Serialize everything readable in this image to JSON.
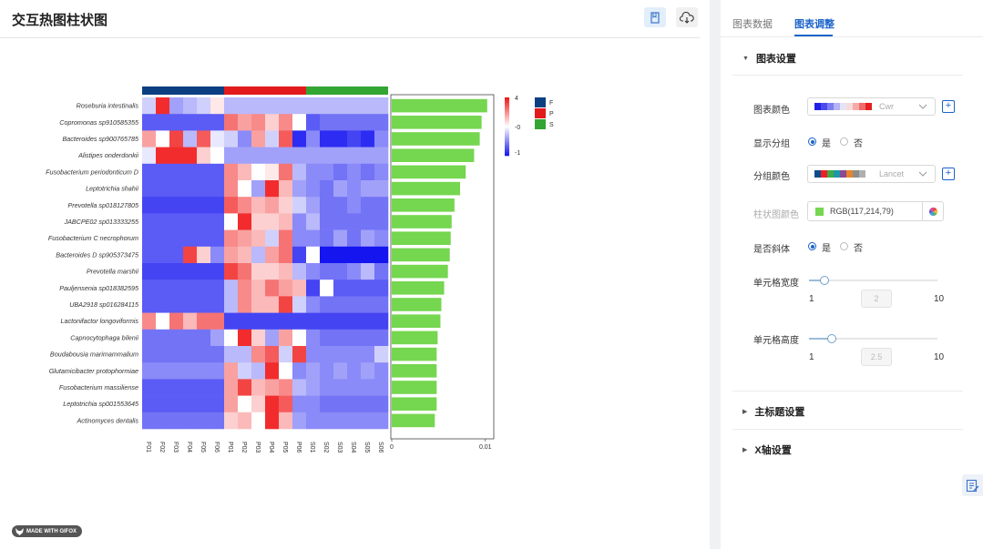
{
  "page": {
    "title": "交互热图柱状图"
  },
  "watermark": "MADE WITH GIFOX",
  "tabs": [
    {
      "label": "图表数据"
    },
    {
      "label": "图表调整"
    }
  ],
  "panel": {
    "chart_settings": {
      "title": "图表设置",
      "chart_color": {
        "label": "图表颜色",
        "value": "Cwr",
        "swatches": [
          "#2121e6",
          "#4a4af0",
          "#7e7ef2",
          "#b3b3f5",
          "#e4e4f6",
          "#f7dada",
          "#f5aaaa",
          "#f06a6a",
          "#e61f1f"
        ]
      },
      "show_group": {
        "label": "显示分组",
        "options": [
          "是",
          "否"
        ],
        "selected": "是"
      },
      "group_color": {
        "label": "分组颜色",
        "value": "Lancet",
        "swatches": [
          "#0b4d8c",
          "#ed1f24",
          "#3cab48",
          "#1d98a4",
          "#8a4a96",
          "#e8842a",
          "#8c8c8c",
          "#b0b0b0"
        ]
      },
      "bar_color": {
        "label": "柱状图颜色",
        "value": "RGB(117,214,79)",
        "color": "#75d64f"
      },
      "italic": {
        "label": "是否斜体",
        "options": [
          "是",
          "否"
        ],
        "selected": "是"
      },
      "cell_width": {
        "label": "单元格宽度",
        "min": "1",
        "max": "10",
        "value": "2"
      },
      "cell_height": {
        "label": "单元格高度",
        "min": "1",
        "max": "10",
        "value": "2.5"
      }
    },
    "main_title_settings": {
      "title": "主标题设置"
    },
    "x_axis_settings": {
      "title": "X轴设置"
    }
  },
  "chart_data": {
    "type": "heatmap",
    "rows": [
      "Roseburia intestinalis",
      "Copromonas sp910585355",
      "Bacteroides sp900765785",
      "Alistipes onderdonkii",
      "Fusobacterium periodonticum D",
      "Leptotrichia shahii",
      "Prevotella sp018127805",
      "JABCPE02 sp013333255",
      "Fusobacterium C necrophorum",
      "Bacteroides D sp905373475",
      "Prevotella marshii",
      "Pauljensenia sp018382595",
      "UBA2918 sp016284115",
      "Lactonifactor longoviformis",
      "Capnocytophaga bilenii",
      "Boudabousia marimammalium",
      "Glutamicibacter protophormiae",
      "Fusobacterium massiliense",
      "Leptotrichia sp001553645",
      "Actinomyces dentalis"
    ],
    "columns": [
      "F01",
      "F02",
      "F03",
      "F04",
      "F05",
      "F06",
      "P01",
      "P02",
      "P03",
      "P04",
      "P05",
      "P06",
      "S01",
      "S02",
      "S03",
      "S04",
      "S05",
      "S06"
    ],
    "groups": [
      {
        "name": "F",
        "color": "#0b3f82"
      },
      {
        "name": "P",
        "color": "#e31a1c"
      },
      {
        "name": "S",
        "color": "#33a532"
      }
    ],
    "values": [
      [
        -0.2,
        0.9,
        -0.4,
        -0.3,
        -0.2,
        0.1,
        -0.3,
        -0.3,
        -0.3,
        -0.3,
        -0.3,
        -0.3,
        -0.3,
        -0.3,
        -0.3,
        -0.3,
        -0.3,
        -0.3
      ],
      [
        -0.7,
        -0.7,
        -0.7,
        -0.7,
        -0.7,
        -0.7,
        0.6,
        0.4,
        0.5,
        0.2,
        0.5,
        0.0,
        -0.7,
        -0.6,
        -0.6,
        -0.6,
        -0.6,
        -0.6
      ],
      [
        0.4,
        0.0,
        0.8,
        -0.3,
        0.7,
        -0.1,
        -0.2,
        -0.5,
        0.4,
        -0.2,
        0.7,
        -0.9,
        -0.5,
        -0.9,
        -0.9,
        -0.8,
        -0.9,
        -0.5
      ],
      [
        -0.1,
        0.9,
        0.9,
        0.9,
        0.2,
        0.0,
        -0.4,
        -0.4,
        -0.4,
        -0.4,
        -0.4,
        -0.4,
        -0.4,
        -0.4,
        -0.4,
        -0.4,
        -0.4,
        -0.4
      ],
      [
        -0.7,
        -0.7,
        -0.7,
        -0.7,
        -0.7,
        -0.7,
        0.5,
        0.3,
        0.0,
        0.1,
        0.6,
        -0.3,
        -0.5,
        -0.5,
        -0.6,
        -0.5,
        -0.6,
        -0.5
      ],
      [
        -0.7,
        -0.7,
        -0.7,
        -0.7,
        -0.7,
        -0.7,
        0.5,
        0.0,
        -0.4,
        0.9,
        0.3,
        -0.4,
        -0.5,
        -0.6,
        -0.4,
        -0.5,
        -0.4,
        -0.4
      ],
      [
        -0.8,
        -0.8,
        -0.8,
        -0.8,
        -0.8,
        -0.8,
        0.7,
        0.5,
        0.3,
        0.4,
        0.2,
        -0.2,
        -0.4,
        -0.6,
        -0.6,
        -0.5,
        -0.6,
        -0.6
      ],
      [
        -0.7,
        -0.7,
        -0.7,
        -0.7,
        -0.7,
        -0.7,
        0.0,
        0.9,
        0.2,
        0.2,
        0.3,
        -0.5,
        -0.3,
        -0.6,
        -0.6,
        -0.6,
        -0.6,
        -0.6
      ],
      [
        -0.7,
        -0.7,
        -0.7,
        -0.7,
        -0.7,
        -0.7,
        0.5,
        0.4,
        0.3,
        -0.2,
        0.6,
        -0.5,
        -0.5,
        -0.6,
        -0.4,
        -0.6,
        -0.4,
        -0.5
      ],
      [
        -0.7,
        -0.7,
        -0.7,
        0.8,
        0.2,
        -0.5,
        0.4,
        0.3,
        -0.3,
        0.4,
        0.6,
        -0.8,
        0.0,
        -1.0,
        -1.0,
        -1.0,
        -1.0,
        -1.0
      ],
      [
        -0.8,
        -0.8,
        -0.8,
        -0.8,
        -0.8,
        -0.8,
        0.8,
        0.6,
        0.2,
        0.2,
        0.3,
        -0.3,
        -0.5,
        -0.6,
        -0.6,
        -0.5,
        -0.3,
        -0.6
      ],
      [
        -0.7,
        -0.7,
        -0.7,
        -0.7,
        -0.7,
        -0.7,
        -0.3,
        0.5,
        0.3,
        0.6,
        0.4,
        0.3,
        -0.8,
        0.0,
        -0.7,
        -0.7,
        -0.7,
        -0.7
      ],
      [
        -0.7,
        -0.7,
        -0.7,
        -0.7,
        -0.7,
        -0.7,
        -0.3,
        0.5,
        0.3,
        0.3,
        0.8,
        -0.2,
        -0.5,
        -0.6,
        -0.6,
        -0.6,
        -0.6,
        -0.6
      ],
      [
        0.5,
        0.0,
        0.6,
        0.3,
        0.6,
        0.6,
        -0.8,
        -0.8,
        -0.8,
        -0.8,
        -0.8,
        -0.8,
        -0.8,
        -0.8,
        -0.8,
        -0.8,
        -0.8,
        -0.8
      ],
      [
        -0.6,
        -0.6,
        -0.6,
        -0.6,
        -0.6,
        -0.4,
        0.0,
        0.9,
        0.2,
        -0.4,
        0.4,
        0.0,
        -0.5,
        -0.6,
        -0.6,
        -0.6,
        -0.6,
        -0.6
      ],
      [
        -0.6,
        -0.6,
        -0.6,
        -0.6,
        -0.6,
        -0.6,
        -0.3,
        -0.3,
        0.5,
        0.7,
        -0.2,
        0.8,
        -0.5,
        -0.5,
        -0.5,
        -0.5,
        -0.5,
        -0.2
      ],
      [
        -0.5,
        -0.5,
        -0.5,
        -0.5,
        -0.5,
        -0.5,
        0.4,
        -0.2,
        -0.3,
        0.9,
        0.0,
        -0.5,
        -0.4,
        -0.5,
        -0.4,
        -0.5,
        -0.4,
        -0.5
      ],
      [
        -0.7,
        -0.7,
        -0.7,
        -0.7,
        -0.7,
        -0.7,
        0.4,
        0.8,
        0.3,
        0.4,
        0.5,
        -0.3,
        -0.4,
        -0.5,
        -0.5,
        -0.5,
        -0.5,
        -0.5
      ],
      [
        -0.7,
        -0.7,
        -0.7,
        -0.7,
        -0.7,
        -0.7,
        0.4,
        0.0,
        0.2,
        0.9,
        0.7,
        -0.5,
        -0.5,
        -0.6,
        -0.6,
        -0.6,
        -0.6,
        -0.6
      ],
      [
        -0.6,
        -0.6,
        -0.6,
        -0.6,
        -0.6,
        -0.6,
        0.2,
        0.3,
        0.0,
        0.9,
        0.3,
        -0.4,
        -0.5,
        -0.5,
        -0.5,
        -0.5,
        -0.5,
        -0.5
      ]
    ],
    "bar_values": [
      0.0102,
      0.0096,
      0.0094,
      0.0088,
      0.0079,
      0.0073,
      0.0067,
      0.0064,
      0.0063,
      0.0062,
      0.006,
      0.0056,
      0.0053,
      0.0052,
      0.0049,
      0.0048,
      0.0048,
      0.0048,
      0.0048,
      0.0046
    ],
    "bar_axis": {
      "ticks": [
        0,
        0.01
      ],
      "tick_labels": [
        "0",
        "0.01"
      ],
      "xlim": [
        0,
        0.0109
      ]
    },
    "colorbar": {
      "ticks": [
        4,
        0,
        -1
      ],
      "tick_labels": [
        "4",
        "-0",
        "-1"
      ]
    },
    "color_scale": {
      "low": "#1515f0",
      "mid": "#ffffff",
      "high": "#f01515"
    },
    "bar_color": "#75d64f",
    "legend_labels": [
      "F",
      "P",
      "S"
    ]
  }
}
